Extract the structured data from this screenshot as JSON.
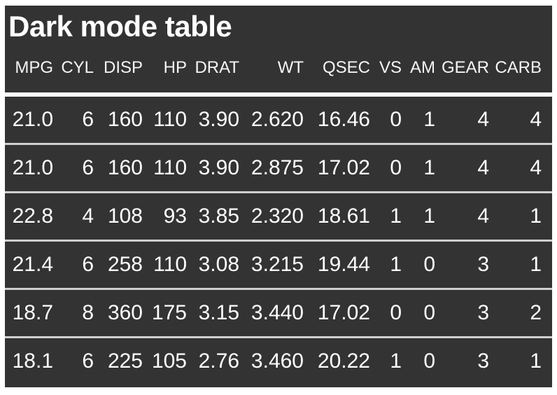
{
  "page": {
    "title": "Dark mode table"
  },
  "colors": {
    "page_background": "#ffffff",
    "table_background": "#333333",
    "title_text": "#ffffff",
    "header_text": "#f5f5f5",
    "cell_text": "#ffffff",
    "header_divider": "#ffffff",
    "row_divider": "#cfcfcf"
  },
  "chart_data": {
    "type": "table",
    "title": "Dark mode table",
    "columns": [
      "MPG",
      "CYL",
      "DISP",
      "HP",
      "DRAT",
      "WT",
      "QSEC",
      "VS",
      "AM",
      "GEAR",
      "CARB"
    ],
    "rows": [
      [
        "21.0",
        "6",
        "160",
        "110",
        "3.90",
        "2.620",
        "16.46",
        "0",
        "1",
        "4",
        "4"
      ],
      [
        "21.0",
        "6",
        "160",
        "110",
        "3.90",
        "2.875",
        "17.02",
        "0",
        "1",
        "4",
        "4"
      ],
      [
        "22.8",
        "4",
        "108",
        "93",
        "3.85",
        "2.320",
        "18.61",
        "1",
        "1",
        "4",
        "1"
      ],
      [
        "21.4",
        "6",
        "258",
        "110",
        "3.08",
        "3.215",
        "19.44",
        "1",
        "0",
        "3",
        "1"
      ],
      [
        "18.7",
        "8",
        "360",
        "175",
        "3.15",
        "3.440",
        "17.02",
        "0",
        "0",
        "3",
        "2"
      ],
      [
        "18.1",
        "6",
        "225",
        "105",
        "2.76",
        "3.460",
        "20.22",
        "1",
        "0",
        "3",
        "1"
      ]
    ],
    "layout": {
      "theme": "dark",
      "value_alignment": "right",
      "header_position": "top"
    }
  }
}
